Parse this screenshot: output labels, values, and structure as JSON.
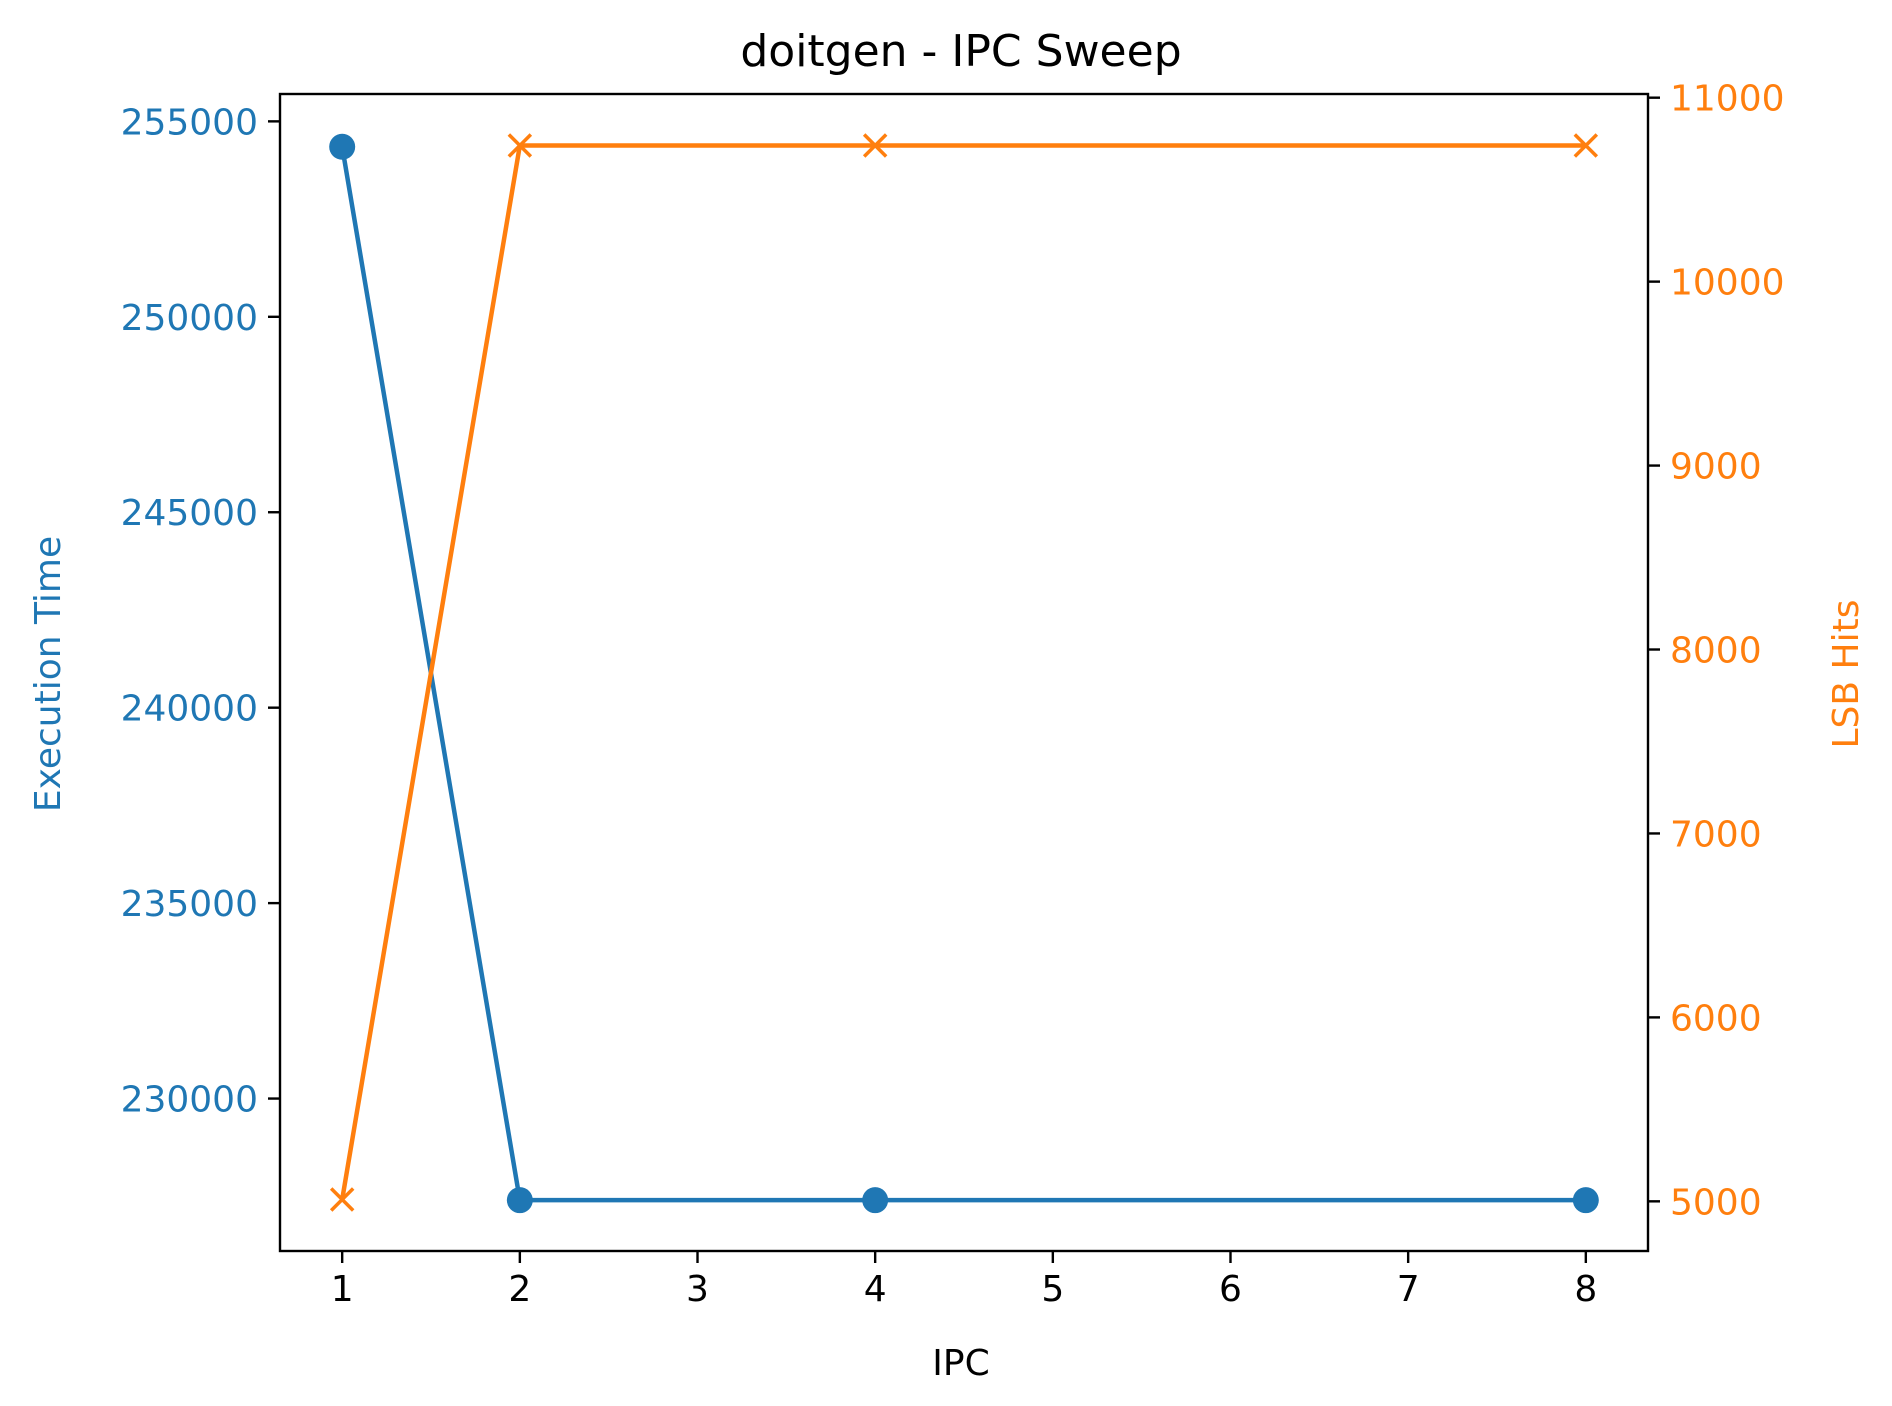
{
  "chart_data": {
    "type": "line",
    "title": "doitgen - IPC Sweep",
    "xlabel": "IPC",
    "x": [
      1,
      2,
      4,
      8
    ],
    "xticks": [
      1,
      2,
      3,
      4,
      5,
      6,
      7,
      8
    ],
    "xlim": [
      0.65,
      8.35
    ],
    "left_axis": {
      "label": "Execution Time",
      "color": "#1f77b4",
      "ylim": [
        226100,
        255700
      ],
      "ticks": [
        230000,
        235000,
        240000,
        245000,
        250000,
        255000
      ]
    },
    "right_axis": {
      "label": "LSB Hits",
      "color": "#ff7f0e",
      "ylim": [
        4730,
        11020
      ],
      "ticks": [
        5000,
        6000,
        7000,
        8000,
        9000,
        10000,
        11000
      ]
    },
    "series": [
      {
        "axis": "left",
        "marker": "circle",
        "color": "#1f77b4",
        "values": [
          254350,
          227400,
          227400,
          227400
        ]
      },
      {
        "axis": "right",
        "marker": "x",
        "color": "#ff7f0e",
        "values": [
          5010,
          10740,
          10740,
          10740
        ]
      }
    ],
    "grid": false
  }
}
